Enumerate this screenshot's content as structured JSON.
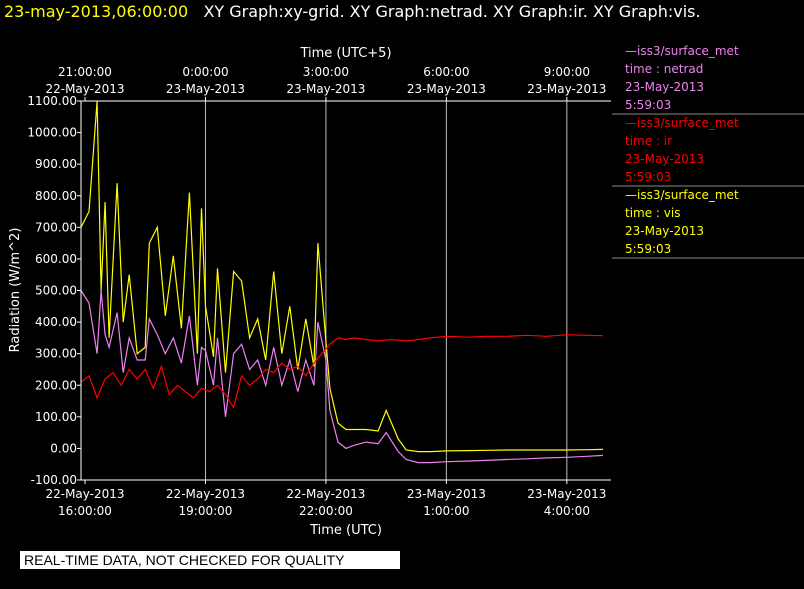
{
  "header": {
    "date_text": "23-may-2013,06:00:00",
    "graphs_text": "XY Graph:xy-grid.  XY Graph:netrad.  XY Graph:ir.  XY Graph:vis."
  },
  "disclaimer": "REAL-TIME DATA, NOT CHECKED FOR QUALITY",
  "colors": {
    "netrad": "#ee82ee",
    "ir": "#ff0000",
    "vis": "#ffff00",
    "grid": "#c0c0c0",
    "axis": "#ffffff"
  },
  "chart_data": {
    "type": "line",
    "ylabel": "Radiation (W/m^2)",
    "xlabel_bottom": "Time (UTC)",
    "xlabel_top": "Time (UTC+5)",
    "ylim": [
      -100,
      1100
    ],
    "y_ticks": [
      "1100.00",
      "1000.00",
      "900.00",
      "800.00",
      "700.00",
      "600.00",
      "500.00",
      "400.00",
      "300.00",
      "200.00",
      "100.00",
      "0.00",
      "-100.00"
    ],
    "y_tick_values": [
      1100,
      1000,
      900,
      800,
      700,
      600,
      500,
      400,
      300,
      200,
      100,
      0,
      -100
    ],
    "xlim": [
      15.9,
      29.1
    ],
    "x_tick_hours": [
      16,
      19,
      22,
      25,
      28
    ],
    "x_ticks_bottom": [
      {
        "date": "22-May-2013",
        "time": "16:00:00"
      },
      {
        "date": "22-May-2013",
        "time": "19:00:00"
      },
      {
        "date": "22-May-2013",
        "time": "22:00:00"
      },
      {
        "date": "23-May-2013",
        "time": "1:00:00"
      },
      {
        "date": "23-May-2013",
        "time": "4:00:00"
      }
    ],
    "x_ticks_top": [
      {
        "time": "21:00:00",
        "date": "22-May-2013"
      },
      {
        "time": "0:00:00",
        "date": "23-May-2013"
      },
      {
        "time": "3:00:00",
        "date": "23-May-2013"
      },
      {
        "time": "6:00:00",
        "date": "23-May-2013"
      },
      {
        "time": "9:00:00",
        "date": "23-May-2013"
      }
    ],
    "series": [
      {
        "key": "vis",
        "legend": [
          "—iss3/surface_met",
          "time : vis",
          "23-May-2013",
          "5:59:03"
        ],
        "x": [
          15.9,
          16.1,
          16.3,
          16.4,
          16.5,
          16.6,
          16.8,
          16.95,
          17.1,
          17.3,
          17.5,
          17.6,
          17.8,
          18.0,
          18.2,
          18.4,
          18.6,
          18.8,
          18.9,
          19.0,
          19.2,
          19.3,
          19.5,
          19.7,
          19.9,
          20.1,
          20.3,
          20.5,
          20.7,
          20.9,
          21.1,
          21.3,
          21.5,
          21.7,
          21.8,
          22.0,
          22.1,
          22.3,
          22.5,
          22.7,
          23.0,
          23.3,
          23.5,
          23.6,
          23.8,
          24.0,
          24.3,
          24.6,
          25.0,
          25.5,
          26.0,
          26.5,
          27.0,
          27.5,
          28.0,
          28.5,
          28.9
        ],
        "y": [
          700,
          750,
          1100,
          500,
          780,
          350,
          840,
          400,
          550,
          300,
          320,
          650,
          700,
          420,
          610,
          380,
          810,
          300,
          760,
          450,
          290,
          570,
          240,
          560,
          530,
          350,
          410,
          280,
          560,
          300,
          450,
          250,
          410,
          260,
          650,
          340,
          190,
          80,
          60,
          60,
          60,
          55,
          120,
          90,
          30,
          -5,
          -10,
          -10,
          -8,
          -7,
          -6,
          -5,
          -5,
          -5,
          -5,
          -4,
          -3
        ]
      },
      {
        "key": "netrad",
        "legend": [
          "—iss3/surface_met",
          "time : netrad",
          "23-May-2013",
          "5:59:03"
        ],
        "x": [
          15.9,
          16.1,
          16.3,
          16.4,
          16.5,
          16.6,
          16.8,
          16.95,
          17.1,
          17.3,
          17.5,
          17.6,
          17.8,
          18.0,
          18.2,
          18.4,
          18.6,
          18.8,
          18.9,
          19.0,
          19.2,
          19.3,
          19.5,
          19.7,
          19.9,
          20.1,
          20.3,
          20.5,
          20.7,
          20.9,
          21.1,
          21.3,
          21.5,
          21.7,
          21.8,
          22.0,
          22.1,
          22.3,
          22.5,
          22.7,
          23.0,
          23.3,
          23.5,
          23.6,
          23.8,
          24.0,
          24.3,
          24.6,
          25.0,
          25.5,
          26.0,
          26.5,
          27.0,
          27.5,
          28.0,
          28.5,
          28.9
        ],
        "y": [
          500,
          460,
          300,
          500,
          360,
          320,
          430,
          240,
          350,
          280,
          280,
          410,
          360,
          300,
          350,
          270,
          420,
          200,
          320,
          310,
          200,
          350,
          100,
          300,
          330,
          250,
          280,
          200,
          320,
          200,
          280,
          180,
          280,
          200,
          400,
          280,
          120,
          20,
          0,
          10,
          20,
          15,
          50,
          30,
          -10,
          -35,
          -45,
          -45,
          -42,
          -40,
          -38,
          -35,
          -33,
          -30,
          -28,
          -25,
          -22
        ]
      },
      {
        "key": "ir",
        "legend": [
          "—iss3/surface_met",
          "time : ir",
          "23-May-2013",
          "5:59:03"
        ],
        "x": [
          15.9,
          16.1,
          16.3,
          16.5,
          16.7,
          16.9,
          17.1,
          17.3,
          17.5,
          17.7,
          17.9,
          18.1,
          18.3,
          18.5,
          18.7,
          18.9,
          19.1,
          19.3,
          19.5,
          19.7,
          19.9,
          20.1,
          20.3,
          20.5,
          20.7,
          20.9,
          21.1,
          21.3,
          21.5,
          21.7,
          21.9,
          22.1,
          22.3,
          22.5,
          22.7,
          23.0,
          23.3,
          23.6,
          24.0,
          24.3,
          24.6,
          25.0,
          25.5,
          26.0,
          26.5,
          27.0,
          27.5,
          28.0,
          28.5,
          28.9
        ],
        "y": [
          210,
          230,
          160,
          220,
          240,
          200,
          250,
          220,
          250,
          190,
          260,
          170,
          200,
          180,
          160,
          190,
          180,
          200,
          170,
          130,
          230,
          200,
          220,
          250,
          240,
          270,
          250,
          260,
          230,
          270,
          300,
          330,
          350,
          345,
          350,
          345,
          340,
          345,
          340,
          345,
          350,
          355,
          352,
          355,
          355,
          358,
          355,
          360,
          358,
          357
        ]
      }
    ]
  }
}
